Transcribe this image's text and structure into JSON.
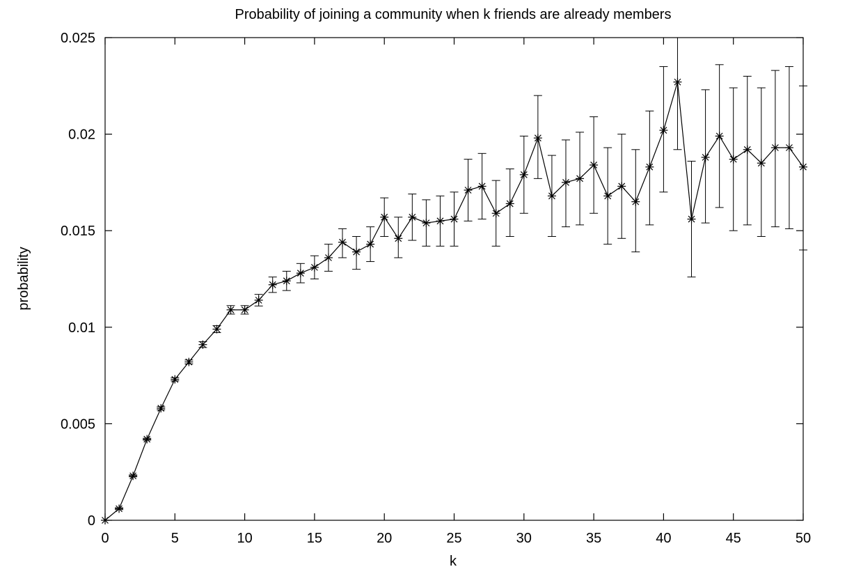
{
  "chart_data": {
    "type": "line",
    "title": "Probability of joining a community when k friends are already members",
    "xlabel": "k",
    "ylabel": "probability",
    "xlim": [
      0,
      50
    ],
    "ylim": [
      0,
      0.025
    ],
    "x_ticks": [
      0,
      5,
      10,
      15,
      20,
      25,
      30,
      35,
      40,
      45,
      50
    ],
    "x_tick_labels": [
      "0",
      "5",
      "10",
      "15",
      "20",
      "25",
      "30",
      "35",
      "40",
      "45",
      "50"
    ],
    "y_ticks": [
      0,
      0.005,
      0.01,
      0.015,
      0.02,
      0.025
    ],
    "y_tick_labels": [
      "0",
      "0.005",
      "0.01",
      "0.015",
      "0.02",
      "0.025"
    ],
    "grid": false,
    "marker": "asterisk",
    "line_color": "#000000",
    "series": [
      {
        "x": [
          0,
          1,
          2,
          3,
          4,
          5,
          6,
          7,
          8,
          9,
          10,
          11,
          12,
          13,
          14,
          15,
          16,
          17,
          18,
          19,
          20,
          21,
          22,
          23,
          24,
          25,
          26,
          27,
          28,
          29,
          30,
          31,
          32,
          33,
          34,
          35,
          36,
          37,
          38,
          39,
          40,
          41,
          42,
          43,
          44,
          45,
          46,
          47,
          48,
          49,
          50
        ],
        "y": [
          0,
          0.0006,
          0.0023,
          0.0042,
          0.0058,
          0.0073,
          0.0082,
          0.0091,
          0.0099,
          0.0109,
          0.0109,
          0.0114,
          0.0122,
          0.0124,
          0.0128,
          0.0131,
          0.0136,
          0.0144,
          0.0139,
          0.0143,
          0.0157,
          0.0146,
          0.0157,
          0.0154,
          0.0155,
          0.0156,
          0.0171,
          0.0173,
          0.0159,
          0.0164,
          0.0179,
          0.0198,
          0.0168,
          0.0175,
          0.0177,
          0.0184,
          0.0168,
          0.0173,
          0.0165,
          0.0183,
          0.0202,
          0.0227,
          0.0156,
          0.0188,
          0.0199,
          0.0187,
          0.0192,
          0.0185,
          0.0193,
          0.0193,
          0.0183
        ],
        "yerr_low": [
          0,
          0.00055,
          0.00225,
          0.00415,
          0.00572,
          0.00722,
          0.0081,
          0.00895,
          0.00972,
          0.01068,
          0.01068,
          0.0111,
          0.0118,
          0.0119,
          0.0123,
          0.0125,
          0.0129,
          0.0136,
          0.013,
          0.0134,
          0.0147,
          0.0136,
          0.0145,
          0.0142,
          0.0142,
          0.0142,
          0.0155,
          0.0156,
          0.0142,
          0.0147,
          0.0159,
          0.0177,
          0.0147,
          0.0152,
          0.0153,
          0.0159,
          0.0143,
          0.0146,
          0.0139,
          0.0153,
          0.017,
          0.0192,
          0.0126,
          0.0154,
          0.0162,
          0.015,
          0.0153,
          0.0147,
          0.0152,
          0.0151,
          0.014
        ],
        "yerr_high": [
          0,
          0.00065,
          0.00235,
          0.00425,
          0.00588,
          0.00738,
          0.0083,
          0.00925,
          0.01008,
          0.01112,
          0.01112,
          0.0117,
          0.0126,
          0.0129,
          0.0133,
          0.0137,
          0.0143,
          0.0151,
          0.0147,
          0.0152,
          0.0167,
          0.0157,
          0.0169,
          0.0166,
          0.0168,
          0.017,
          0.0187,
          0.019,
          0.0176,
          0.0182,
          0.0199,
          0.022,
          0.0189,
          0.0197,
          0.0201,
          0.0209,
          0.0193,
          0.02,
          0.0192,
          0.0212,
          0.0235,
          0.025,
          0.0186,
          0.0223,
          0.0236,
          0.0224,
          0.023,
          0.0224,
          0.0233,
          0.0235,
          0.0225
        ]
      }
    ]
  }
}
